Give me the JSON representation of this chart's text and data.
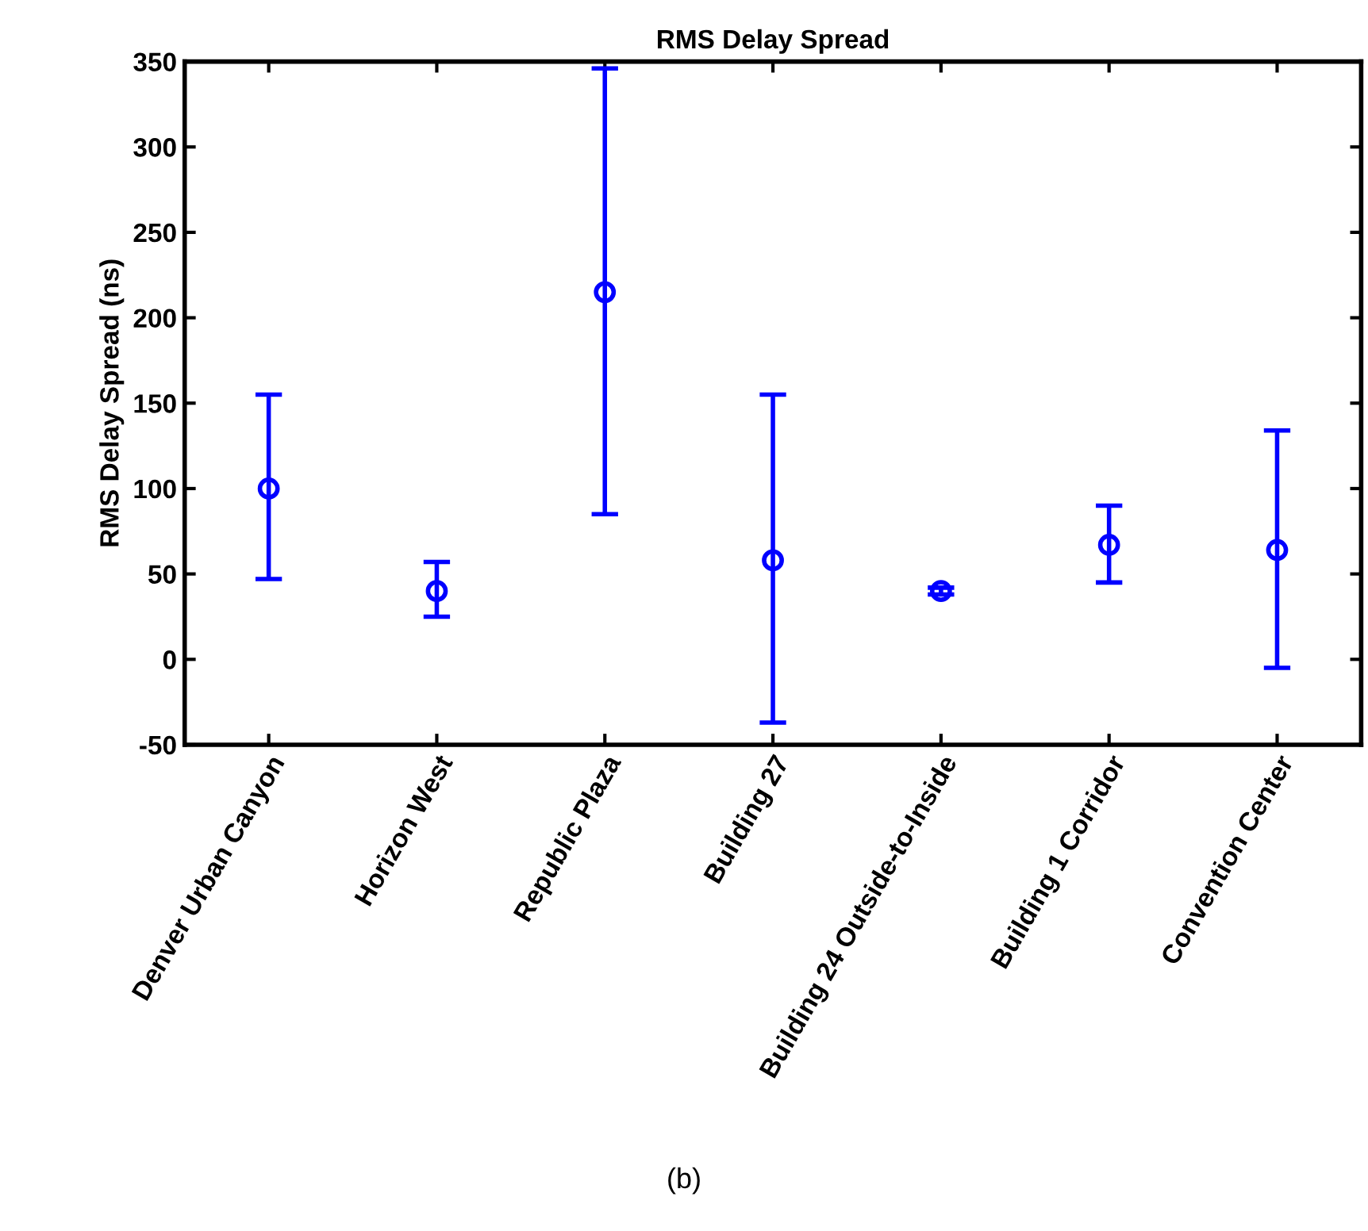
{
  "chart_data": {
    "type": "scatter",
    "title": "RMS Delay Spread",
    "ylabel": "RMS Delay Spread (ns)",
    "categories": [
      "Denver Urban Canyon",
      "Horizon West",
      "Republic Plaza",
      "Building 27",
      "Building 24 Outside-to-Inside",
      "Building 1 Corridor",
      "Convention Center"
    ],
    "series": [
      {
        "color": "#0000ff",
        "values": [
          100,
          40,
          215,
          58,
          40,
          67,
          64
        ],
        "errors": [
          [
            47,
            155
          ],
          [
            25,
            57
          ],
          [
            85,
            346
          ],
          [
            -37,
            155
          ],
          [
            38,
            42
          ],
          [
            45,
            90
          ],
          [
            -5,
            134
          ]
        ]
      }
    ],
    "marker": "circle",
    "ylim": [
      -50,
      350
    ],
    "yticks": [
      -50,
      0,
      50,
      100,
      150,
      200,
      250,
      300,
      350
    ],
    "grid": false,
    "legend": false,
    "annotations": [
      "(b)"
    ]
  }
}
